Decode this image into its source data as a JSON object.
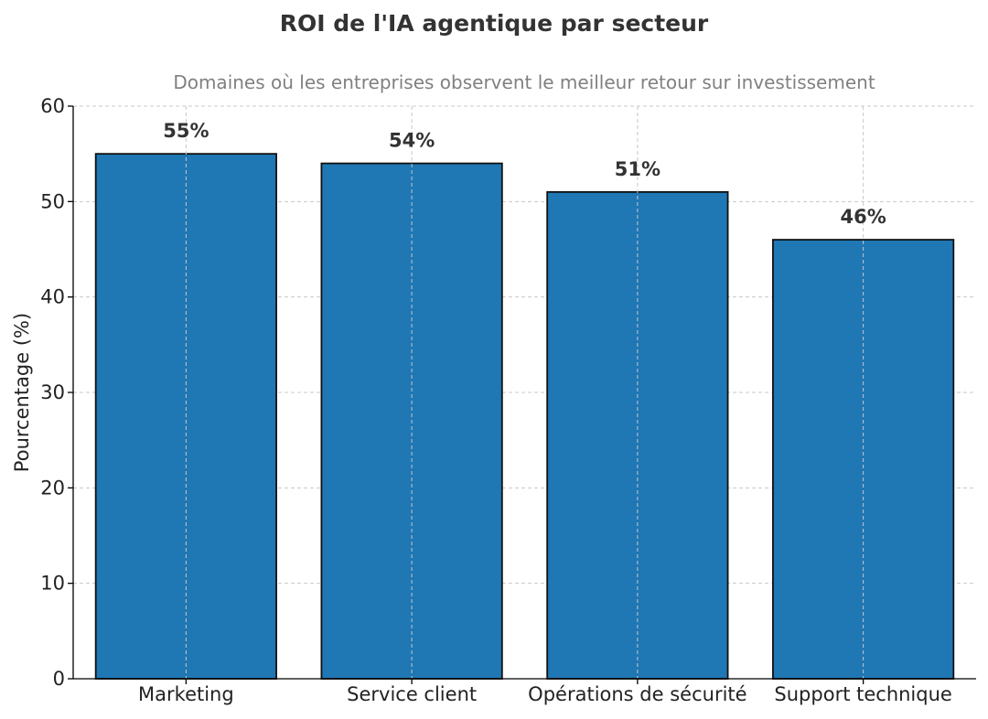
{
  "chart_data": {
    "type": "bar",
    "title": "ROI de l'IA agentique par secteur",
    "subtitle": "Domaines où les entreprises observent le meilleur retour sur investissement",
    "ylabel": "Pourcentage (%)",
    "xlabel": "",
    "categories": [
      "Marketing",
      "Service client",
      "Opérations de sécurité",
      "Support technique"
    ],
    "values": [
      55,
      54,
      51,
      46
    ],
    "value_labels": [
      "55%",
      "54%",
      "51%",
      "46%"
    ],
    "ylim": [
      0,
      60
    ],
    "yticks": [
      0,
      10,
      20,
      30,
      40,
      50,
      60
    ],
    "ytick_labels": [
      "0",
      "10",
      "20",
      "30",
      "40",
      "50",
      "60"
    ],
    "grid": true,
    "bar_color": "#1f77b4"
  }
}
